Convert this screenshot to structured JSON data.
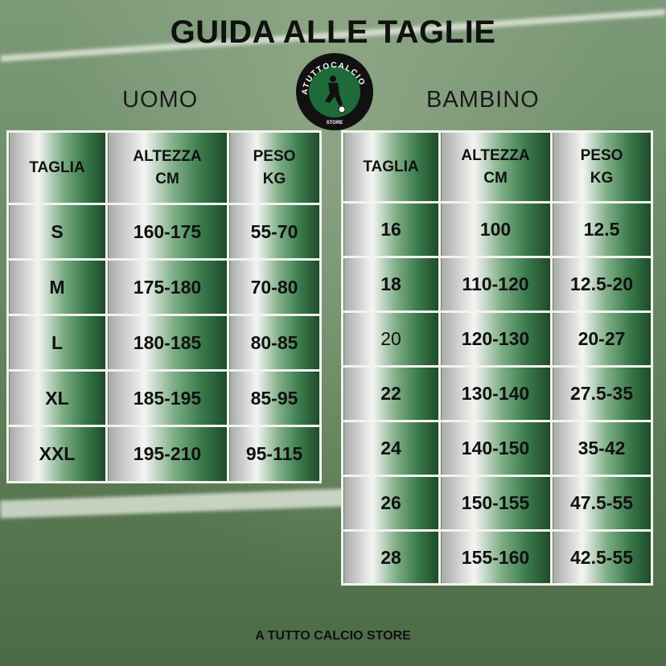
{
  "title": "GUIDA ALLE TAGLIE",
  "logo": {
    "text_top": "ATUTTOCALCIO",
    "text_bottom": "STORE"
  },
  "uomo": {
    "label": "UOMO",
    "headers": [
      [
        "TAGLIA"
      ],
      [
        "ALTEZZA",
        "CM"
      ],
      [
        "PESO",
        "KG"
      ]
    ],
    "rows": [
      [
        "S",
        "160-175",
        "55-70"
      ],
      [
        "M",
        "175-180",
        "70-80"
      ],
      [
        "L",
        "180-185",
        "80-85"
      ],
      [
        "XL",
        "185-195",
        "85-95"
      ],
      [
        "XXL",
        "195-210",
        "95-115"
      ]
    ]
  },
  "bambino": {
    "label": "BAMBINO",
    "headers": [
      [
        "TAGLIA"
      ],
      [
        "ALTEZZA",
        "CM"
      ],
      [
        "PESO",
        "KG"
      ]
    ],
    "rows": [
      [
        "16",
        "100",
        "12.5"
      ],
      [
        "18",
        "110-120",
        "12.5-20"
      ],
      [
        "20",
        "120-130",
        "20-27"
      ],
      [
        "22",
        "130-140",
        "27.5-35"
      ],
      [
        "24",
        "140-150",
        "35-42"
      ],
      [
        "26",
        "150-155",
        "47.5-55"
      ],
      [
        "28",
        "155-160",
        "42.5-55"
      ]
    ]
  },
  "footer": "A TUTTO CALCIO STORE",
  "colors": {
    "green_dark": "#1e4a2a",
    "green": "#3a7a4a",
    "logo_green": "#1f6a3a"
  }
}
